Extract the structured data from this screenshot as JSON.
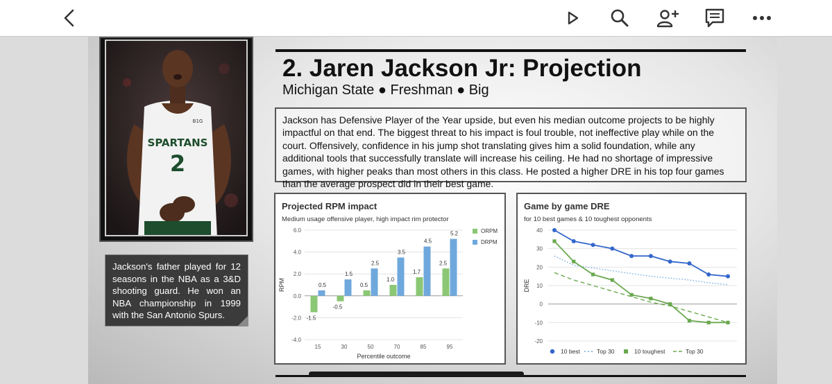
{
  "toolbar": {
    "icons": [
      "back-icon",
      "play-icon",
      "search-icon",
      "add-user-icon",
      "comment-icon",
      "more-icon"
    ]
  },
  "photo": {
    "jersey_text": "SPARTANS",
    "jersey_number": "2",
    "brand": "B1G"
  },
  "caption": "Jackson's father played for 12 seasons in the NBA as a 3&D shooting guard. He won an NBA championship in 1999 with the San Antonio Spurs.",
  "heading": {
    "title": "2. Jaren Jackson Jr: Projection",
    "subtitle": "Michigan State ● Freshman ● Big"
  },
  "description": "Jackson has Defensive Player of the Year upside, but even his median outcome projects to be highly impactful on that end. The biggest threat to his impact is foul trouble, not ineffective play while on the court. Offensively, confidence in his jump shot translating gives him a solid foundation, while any additional tools that successfully translate will increase his ceiling. He had no shortage of impressive games, with higher peaks than most others in this class. He posted a higher DRE in his top four games than the average prospect did in their best game.",
  "chart_data": [
    {
      "type": "bar",
      "title": "Projected RPM impact",
      "subtitle": "Medium usage offensive player, high impact rim protector",
      "xlabel": "Percentile outcome",
      "ylabel": "RPM",
      "categories": [
        "15",
        "30",
        "50",
        "70",
        "85",
        "95"
      ],
      "ylim": [
        -4.0,
        6.0
      ],
      "yticks": [
        "6.0",
        "4.0",
        "2.0",
        "0.0",
        "-2.0",
        "-4.0"
      ],
      "legend_position": "right",
      "grid": true,
      "series": [
        {
          "name": "ORPM",
          "color": "#8bc774",
          "values": [
            -1.5,
            -0.5,
            0.5,
            1.0,
            1.7,
            2.5
          ],
          "labels": [
            "-1.5",
            "-0.5",
            "0.5",
            "1.0",
            "1.7",
            "2.5"
          ]
        },
        {
          "name": "DRPM",
          "color": "#6fa8dc",
          "values": [
            0.5,
            1.5,
            2.5,
            3.5,
            4.5,
            5.2
          ],
          "labels": [
            "0.5",
            "1.5",
            "2.5",
            "3.5",
            "4.5",
            "5.2"
          ]
        }
      ]
    },
    {
      "type": "line",
      "title": "Game by game DRE",
      "subtitle": "for 10 best games & 10 toughest opponents",
      "xlabel": "",
      "ylabel": "DRE",
      "ylim": [
        -20,
        40
      ],
      "yticks": [
        "40",
        "30",
        "20",
        "10",
        "0",
        "-10",
        "-20"
      ],
      "legend_position": "bottom",
      "grid": true,
      "series": [
        {
          "name": "10 best",
          "color": "#3366cc",
          "style": "solid-dot",
          "values": [
            40,
            34,
            32,
            30,
            26,
            26,
            23,
            22,
            16,
            15
          ]
        },
        {
          "name": "Top 30",
          "color": "#6fa8dc",
          "style": "dotted",
          "values": [
            26,
            21,
            19.5,
            18,
            16.5,
            15,
            14,
            13,
            11.5,
            10.5
          ]
        },
        {
          "name": "10 toughest",
          "color": "#6aa84f",
          "style": "solid-square",
          "values": [
            34,
            23,
            16,
            13,
            5,
            3,
            0,
            -9,
            -10,
            -10
          ]
        },
        {
          "name": "Top 30",
          "color": "#6aa84f",
          "style": "dashed",
          "values": [
            17,
            13,
            10,
            7,
            4,
            1,
            -1,
            -4,
            -7,
            -10
          ]
        }
      ]
    }
  ]
}
